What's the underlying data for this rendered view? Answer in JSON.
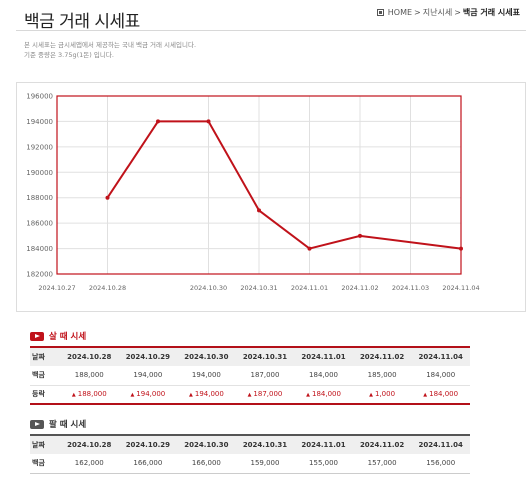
{
  "header": {
    "title": "백금 거래 시세표",
    "breadcrumb": [
      "HOME",
      "지난시세",
      "백금 거래 시세표"
    ]
  },
  "description": {
    "line1": "본 시세표는 금시세앱에서 제공하는 국내 백금 거래 시세입니다.",
    "line2": "기준 중량은 3.75g(1돈) 입니다."
  },
  "chart_data": {
    "type": "line",
    "x_ticks": [
      "2024.10.27",
      "2024.10.28",
      "2024.10.30",
      "2024.10.31",
      "2024.11.01",
      "2024.11.02",
      "2024.11.03",
      "2024.11.04"
    ],
    "points": [
      {
        "x": "2024.10.28",
        "y": 188000
      },
      {
        "x": "2024.10.29",
        "y": 194000
      },
      {
        "x": "2024.10.30",
        "y": 194000
      },
      {
        "x": "2024.10.31",
        "y": 187000
      },
      {
        "x": "2024.11.01",
        "y": 184000
      },
      {
        "x": "2024.11.02",
        "y": 185000
      },
      {
        "x": "2024.11.04",
        "y": 184000
      }
    ],
    "y_ticks": [
      196000,
      194000,
      192000,
      190000,
      188000,
      186000,
      184000,
      182000
    ],
    "ylim": [
      182000,
      196000
    ],
    "xlim": [
      "2024.10.27",
      "2024.11.04"
    ],
    "grid": true,
    "line_color": "#c0121a"
  },
  "buy_section": {
    "title": "살 때 시세",
    "header_label": "날짜",
    "dates": [
      "2024.10.28",
      "2024.10.29",
      "2024.10.30",
      "2024.10.31",
      "2024.11.01",
      "2024.11.02",
      "2024.11.04"
    ],
    "rows": [
      {
        "label": "백금",
        "values": [
          "188,000",
          "194,000",
          "194,000",
          "187,000",
          "184,000",
          "185,000",
          "184,000"
        ]
      },
      {
        "label": "등락",
        "values": [
          "188,000",
          "194,000",
          "194,000",
          "187,000",
          "184,000",
          "1,000",
          "184,000"
        ]
      }
    ]
  },
  "sell_section": {
    "title": "팔 때 시세",
    "header_label": "날짜",
    "dates": [
      "2024.10.28",
      "2024.10.29",
      "2024.10.30",
      "2024.10.31",
      "2024.11.01",
      "2024.11.02",
      "2024.11.04"
    ],
    "rows": [
      {
        "label": "백금",
        "values": [
          "162,000",
          "166,000",
          "166,000",
          "159,000",
          "155,000",
          "157,000",
          "156,000"
        ]
      }
    ]
  }
}
